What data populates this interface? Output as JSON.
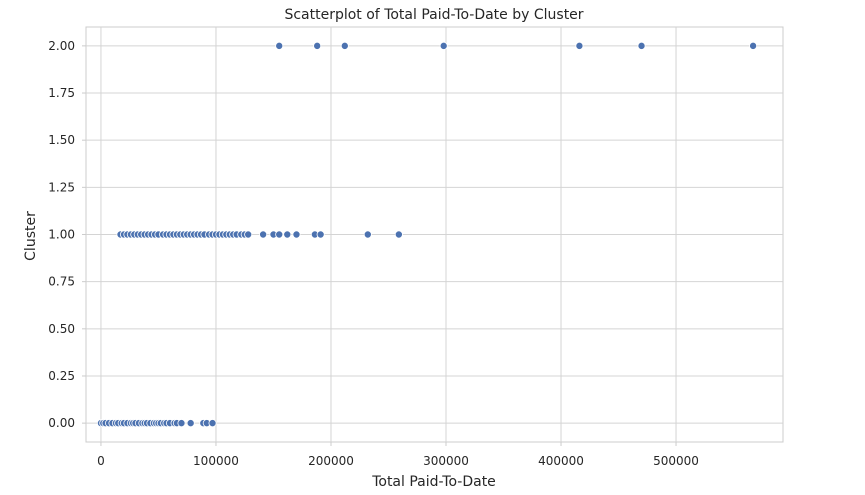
{
  "chart_data": {
    "type": "scatter",
    "title": "Scatterplot of Total Paid-To-Date by Cluster",
    "xlabel": "Total Paid-To-Date",
    "ylabel": "Cluster",
    "xlim": [
      -13000,
      593000
    ],
    "ylim": [
      -0.1,
      2.1
    ],
    "x_ticks": [
      0,
      100000,
      200000,
      300000,
      400000,
      500000
    ],
    "x_tick_labels": [
      "0",
      "100000",
      "200000",
      "300000",
      "400000",
      "500000"
    ],
    "y_ticks": [
      0.0,
      0.25,
      0.5,
      0.75,
      1.0,
      1.25,
      1.5,
      1.75,
      2.0
    ],
    "y_tick_labels": [
      "0.00",
      "0.25",
      "0.50",
      "0.75",
      "1.00",
      "1.25",
      "1.50",
      "1.75",
      "2.00"
    ],
    "grid": true,
    "color": "#4c72b0",
    "series": [
      {
        "cluster": 0,
        "x": [
          0,
          2000,
          4000,
          7000,
          10000,
          13000,
          15000,
          18000,
          20000,
          23000,
          26000,
          28000,
          30000,
          33000,
          36000,
          38000,
          40000,
          43000,
          46000,
          48000,
          50000,
          52000,
          55000,
          57000,
          60000,
          64000,
          66000,
          70000,
          78000,
          89000,
          92000,
          97000
        ]
      },
      {
        "cluster": 1,
        "x": [
          17000,
          20000,
          23000,
          26000,
          29000,
          32000,
          35000,
          38000,
          41000,
          44000,
          47000,
          50000,
          54000,
          57000,
          60000,
          63000,
          66000,
          69000,
          72000,
          75000,
          78000,
          81000,
          84000,
          87000,
          90000,
          94000,
          97000,
          100000,
          103000,
          106000,
          109000,
          112000,
          115000,
          118000,
          122000,
          125000,
          128000,
          141000,
          150000,
          155000,
          162000,
          170000,
          186000,
          191000,
          232000,
          259000
        ]
      },
      {
        "cluster": 2,
        "x": [
          155000,
          188000,
          212000,
          298000,
          416000,
          470000,
          567000
        ]
      }
    ]
  }
}
